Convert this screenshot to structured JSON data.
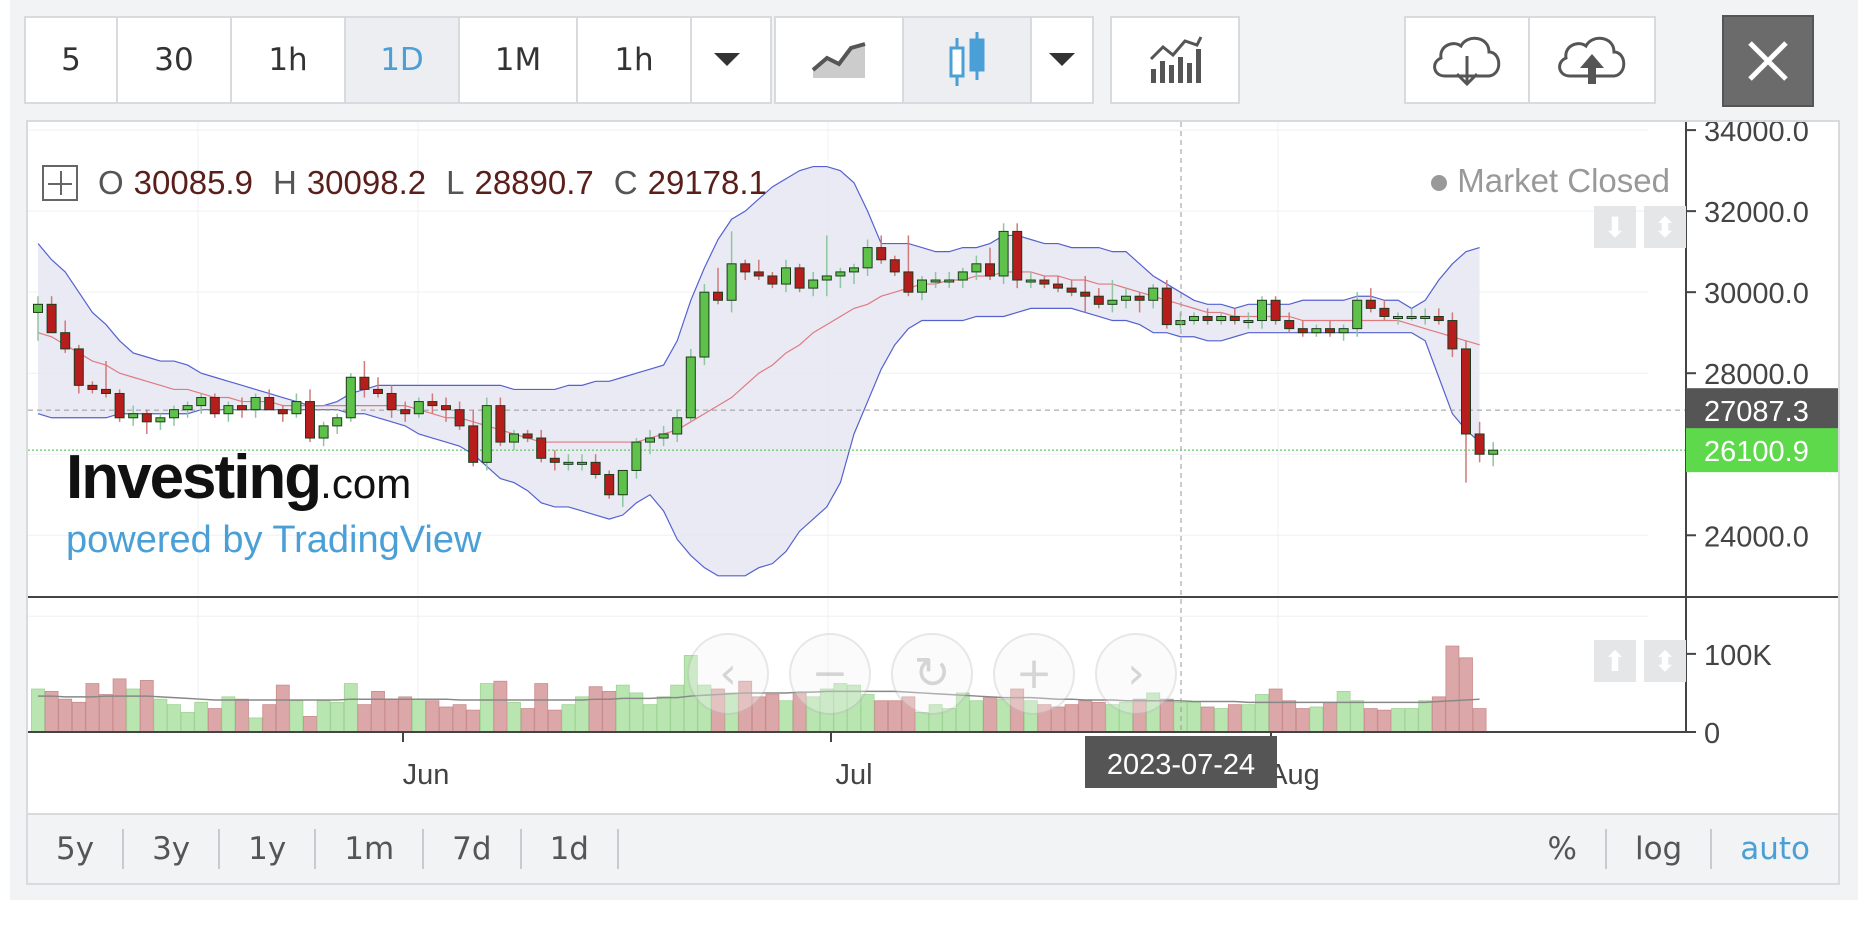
{
  "toolbar": {
    "intervals": [
      "5",
      "30",
      "1h",
      "1D",
      "1M",
      "1h"
    ],
    "active_interval": "1D",
    "chart_types": [
      "line-chart-icon",
      "candlestick-icon"
    ],
    "icons": {
      "dropdown": "caret-down-icon",
      "indicators": "indicators-icon",
      "download": "cloud-download-icon",
      "upload": "cloud-upload-icon",
      "close": "close-icon"
    }
  },
  "legend": {
    "o_label": "O",
    "o_value": "30085.9",
    "h_label": "H",
    "h_value": "30098.2",
    "l_label": "L",
    "l_value": "28890.7",
    "c_label": "C",
    "c_value": "29178.1",
    "market_status": "Market Closed"
  },
  "watermark": {
    "brand": "Investing",
    "suffix": ".com",
    "powered": "powered by TradingView"
  },
  "price_axis": {
    "ticks": [
      "34000.0",
      "32000.0",
      "30000.0",
      "28000.0",
      "24000.0"
    ],
    "hover_label": "27087.3",
    "last_label": "26100.9",
    "hover_color": "#555555",
    "last_color": "#5fd94c"
  },
  "volume_axis": {
    "ticks": [
      "100K",
      "0"
    ]
  },
  "time_axis": {
    "labels": [
      "Jun",
      "Jul",
      "Aug"
    ],
    "crosshair_label": "2023-07-24"
  },
  "range_bar": {
    "left": [
      "5y",
      "3y",
      "1y",
      "1m",
      "7d",
      "1d"
    ],
    "right": [
      "%",
      "log",
      "auto"
    ],
    "active": "auto"
  },
  "colors": {
    "up": "#5ec24a",
    "down": "#b81d1d",
    "band_fill": "#e6e6f2",
    "band_line": "#5561d0",
    "ma_line": "#e07a80",
    "vol_up": "#b9e5b1",
    "vol_down": "#dca7a8",
    "accent": "#4aa0d6"
  },
  "chart_data": {
    "type": "candlestick",
    "price_range": [
      22600,
      34200
    ],
    "volume_range": [
      0,
      160000
    ],
    "candles": [
      [
        29500,
        29900,
        28800,
        29700
      ],
      [
        29700,
        29900,
        29000,
        29000
      ],
      [
        29000,
        29300,
        28500,
        28600
      ],
      [
        28600,
        28700,
        27500,
        27700
      ],
      [
        27700,
        27800,
        27500,
        27600
      ],
      [
        27600,
        28300,
        27400,
        27500
      ],
      [
        27500,
        27600,
        26800,
        26900
      ],
      [
        26900,
        27200,
        26700,
        27000
      ],
      [
        27000,
        27100,
        26500,
        26800
      ],
      [
        26800,
        27000,
        26600,
        26900
      ],
      [
        26900,
        27200,
        26700,
        27100
      ],
      [
        27100,
        27300,
        26900,
        27200
      ],
      [
        27200,
        27500,
        27000,
        27400
      ],
      [
        27400,
        27500,
        26900,
        27000
      ],
      [
        27000,
        27300,
        26800,
        27200
      ],
      [
        27200,
        27400,
        26900,
        27100
      ],
      [
        27100,
        27500,
        26900,
        27400
      ],
      [
        27400,
        27600,
        27100,
        27100
      ],
      [
        27100,
        27200,
        26800,
        27000
      ],
      [
        27000,
        27500,
        26900,
        27300
      ],
      [
        27300,
        27600,
        26300,
        26400
      ],
      [
        26400,
        26800,
        26200,
        26700
      ],
      [
        26700,
        27000,
        26500,
        26900
      ],
      [
        26900,
        28000,
        26800,
        27900
      ],
      [
        27900,
        28300,
        27400,
        27600
      ],
      [
        27600,
        27900,
        27400,
        27500
      ],
      [
        27500,
        27700,
        26900,
        27100
      ],
      [
        27100,
        27300,
        26800,
        27000
      ],
      [
        27000,
        27400,
        26900,
        27300
      ],
      [
        27300,
        27500,
        27000,
        27200
      ],
      [
        27200,
        27400,
        26800,
        27100
      ],
      [
        27100,
        27300,
        26600,
        26700
      ],
      [
        26700,
        27100,
        25700,
        25800
      ],
      [
        25800,
        27400,
        25600,
        27200
      ],
      [
        27200,
        27400,
        26200,
        26300
      ],
      [
        26300,
        26600,
        26100,
        26500
      ],
      [
        26500,
        26600,
        26300,
        26400
      ],
      [
        26400,
        26600,
        25800,
        25900
      ],
      [
        25900,
        26100,
        25600,
        25800
      ],
      [
        25800,
        26000,
        25600,
        25800
      ],
      [
        25800,
        26000,
        25600,
        25800
      ],
      [
        25800,
        26000,
        25400,
        25500
      ],
      [
        25500,
        25600,
        24900,
        25000
      ],
      [
        25000,
        25600,
        24700,
        25600
      ],
      [
        25600,
        26400,
        25400,
        26300
      ],
      [
        26300,
        26600,
        26000,
        26400
      ],
      [
        26400,
        26700,
        26200,
        26500
      ],
      [
        26500,
        27100,
        26300,
        26900
      ],
      [
        26900,
        28600,
        26800,
        28400
      ],
      [
        28400,
        30200,
        28200,
        30000
      ],
      [
        30000,
        30600,
        29700,
        29800
      ],
      [
        29800,
        31500,
        29500,
        30700
      ],
      [
        30700,
        30800,
        30300,
        30500
      ],
      [
        30500,
        30800,
        30300,
        30400
      ],
      [
        30400,
        30500,
        30100,
        30200
      ],
      [
        30200,
        30800,
        30000,
        30600
      ],
      [
        30600,
        30700,
        30000,
        30100
      ],
      [
        30100,
        30500,
        29900,
        30300
      ],
      [
        30300,
        31400,
        29900,
        30400
      ],
      [
        30400,
        30600,
        30100,
        30500
      ],
      [
        30500,
        30700,
        30200,
        30600
      ],
      [
        30600,
        31300,
        30400,
        31100
      ],
      [
        31100,
        31400,
        30700,
        30800
      ],
      [
        30800,
        30900,
        30400,
        30500
      ],
      [
        30500,
        31400,
        29900,
        30000
      ],
      [
        30000,
        30400,
        29800,
        30300
      ],
      [
        30300,
        30500,
        30100,
        30300
      ],
      [
        30300,
        30500,
        30100,
        30300
      ],
      [
        30300,
        30600,
        30100,
        30500
      ],
      [
        30500,
        30900,
        30300,
        30700
      ],
      [
        30700,
        31100,
        30300,
        30400
      ],
      [
        30400,
        31700,
        30200,
        31500
      ],
      [
        31500,
        31700,
        30100,
        30300
      ],
      [
        30300,
        30500,
        30100,
        30300
      ],
      [
        30300,
        30400,
        30100,
        30200
      ],
      [
        30200,
        30400,
        30000,
        30100
      ],
      [
        30100,
        30300,
        29900,
        30000
      ],
      [
        30000,
        30400,
        29500,
        29900
      ],
      [
        29900,
        30100,
        29600,
        29700
      ],
      [
        29700,
        30300,
        29500,
        29800
      ],
      [
        29800,
        30100,
        29600,
        29900
      ],
      [
        29900,
        30000,
        29500,
        29800
      ],
      [
        29800,
        30200,
        29600,
        30100
      ],
      [
        30100,
        30300,
        29100,
        29200
      ],
      [
        29200,
        29500,
        29100,
        29300
      ],
      [
        29300,
        29500,
        29200,
        29400
      ],
      [
        29400,
        29600,
        29200,
        29300
      ],
      [
        29300,
        29500,
        29200,
        29400
      ],
      [
        29400,
        29600,
        29200,
        29300
      ],
      [
        29300,
        29500,
        29100,
        29300
      ],
      [
        29300,
        29900,
        29100,
        29800
      ],
      [
        29800,
        29900,
        29200,
        29300
      ],
      [
        29300,
        29500,
        29000,
        29100
      ],
      [
        29100,
        29300,
        28900,
        29000
      ],
      [
        29000,
        29200,
        28900,
        29100
      ],
      [
        29100,
        29300,
        28900,
        29000
      ],
      [
        29000,
        29200,
        28800,
        29100
      ],
      [
        29100,
        30000,
        28900,
        29800
      ],
      [
        29800,
        30100,
        29500,
        29600
      ],
      [
        29600,
        29800,
        29300,
        29400
      ],
      [
        29400,
        29500,
        29200,
        29400
      ],
      [
        29400,
        29600,
        29300,
        29400
      ],
      [
        29400,
        29600,
        29200,
        29400
      ],
      [
        29400,
        29600,
        29200,
        29300
      ],
      [
        29300,
        29500,
        28400,
        28600
      ],
      [
        28600,
        28800,
        25300,
        26500
      ],
      [
        26500,
        26800,
        25800,
        26000
      ],
      [
        26000,
        26300,
        25700,
        26100
      ]
    ],
    "volumes": [
      55,
      52,
      42,
      38,
      62,
      48,
      68,
      55,
      66,
      42,
      35,
      25,
      38,
      30,
      45,
      42,
      18,
      35,
      60,
      40,
      20,
      40,
      38,
      62,
      35,
      52,
      42,
      45,
      42,
      40,
      32,
      35,
      28,
      62,
      65,
      38,
      30,
      62,
      28,
      35,
      45,
      58,
      52,
      60,
      50,
      35,
      45,
      60,
      98,
      60,
      55,
      50,
      65,
      45,
      48,
      40,
      50,
      45,
      55,
      62,
      60,
      48,
      40,
      40,
      45,
      25,
      35,
      30,
      50,
      40,
      45,
      42,
      55,
      40,
      35,
      32,
      35,
      40,
      38,
      35,
      38,
      42,
      50,
      42,
      38,
      38,
      32,
      30,
      35,
      35,
      48,
      55,
      40,
      30,
      32,
      38,
      52,
      40,
      30,
      28,
      30,
      30,
      40,
      45,
      110,
      95,
      30
    ],
    "bands": {
      "upper": [
        31200,
        30800,
        30500,
        30000,
        29500,
        29200,
        28800,
        28500,
        28400,
        28300,
        28300,
        28200,
        28000,
        27900,
        27800,
        27700,
        27600,
        27500,
        27400,
        27300,
        27200,
        27200,
        27300,
        27500,
        27600,
        27700,
        27700,
        27700,
        27700,
        27700,
        27700,
        27700,
        27700,
        27700,
        27700,
        27600,
        27600,
        27600,
        27600,
        27700,
        27700,
        27800,
        27800,
        27900,
        28000,
        28100,
        28200,
        28800,
        29800,
        30600,
        31300,
        31800,
        32000,
        32300,
        32600,
        32800,
        33000,
        33100,
        33100,
        33000,
        32700,
        32000,
        31200,
        31200,
        31200,
        31100,
        31000,
        31000,
        31100,
        31100,
        31200,
        31400,
        31400,
        31300,
        31200,
        31200,
        31100,
        31100,
        31100,
        31000,
        31000,
        30700,
        30400,
        30200,
        30000,
        29800,
        29700,
        29700,
        29600,
        29700,
        29700,
        29700,
        29700,
        29800,
        29800,
        29800,
        29800,
        29900,
        29900,
        29800,
        29800,
        29600,
        29800,
        30300,
        30700,
        31000,
        31100
      ],
      "lower": [
        27000,
        26900,
        26900,
        26900,
        26900,
        26900,
        27000,
        27000,
        27000,
        27000,
        27000,
        27000,
        27100,
        27100,
        27100,
        27100,
        27100,
        27100,
        27100,
        27100,
        27100,
        27100,
        27100,
        27000,
        27000,
        26900,
        26800,
        26700,
        26500,
        26400,
        26300,
        26200,
        26000,
        25700,
        25400,
        25300,
        25100,
        24800,
        24700,
        24700,
        24600,
        24500,
        24400,
        24500,
        24800,
        25000,
        24600,
        23900,
        23500,
        23200,
        23000,
        23000,
        23000,
        23200,
        23300,
        23600,
        24100,
        24400,
        24700,
        25300,
        26500,
        27300,
        28100,
        28700,
        29100,
        29300,
        29300,
        29300,
        29300,
        29400,
        29400,
        29400,
        29500,
        29600,
        29600,
        29600,
        29600,
        29500,
        29400,
        29300,
        29300,
        29200,
        29000,
        29000,
        28900,
        28900,
        28800,
        28800,
        28900,
        29000,
        29000,
        29000,
        29000,
        29000,
        29000,
        29000,
        29000,
        29000,
        29000,
        29000,
        29000,
        29000,
        28800,
        27900,
        27000,
        26600,
        26300
      ],
      "middle": [
        29000,
        28900,
        28700,
        28500,
        28300,
        28200,
        28000,
        27900,
        27800,
        27700,
        27600,
        27600,
        27500,
        27400,
        27400,
        27300,
        27300,
        27300,
        27200,
        27200,
        27200,
        27200,
        27200,
        27200,
        27200,
        27200,
        27200,
        27200,
        27100,
        27000,
        26900,
        26900,
        26800,
        26700,
        26600,
        26500,
        26400,
        26300,
        26300,
        26300,
        26300,
        26300,
        26300,
        26300,
        26300,
        26400,
        26500,
        26600,
        26800,
        27000,
        27200,
        27400,
        27700,
        28000,
        28200,
        28500,
        28700,
        29000,
        29200,
        29400,
        29600,
        29700,
        29900,
        30000,
        30100,
        30200,
        30200,
        30300,
        30300,
        30400,
        30400,
        30500,
        30500,
        30500,
        30400,
        30400,
        30300,
        30300,
        30200,
        30200,
        30100,
        30000,
        29900,
        29800,
        29700,
        29600,
        29500,
        29500,
        29400,
        29400,
        29400,
        29400,
        29400,
        29300,
        29300,
        29300,
        29300,
        29300,
        29300,
        29300,
        29300,
        29200,
        29100,
        29000,
        28900,
        28800,
        28700
      ]
    },
    "volume_ma": [
      46,
      46,
      45,
      45,
      45,
      46,
      46,
      46,
      46,
      45,
      44,
      43,
      42,
      41,
      41,
      41,
      41,
      41,
      41,
      41,
      41,
      41,
      41,
      42,
      42,
      42,
      42,
      42,
      42,
      42,
      42,
      41,
      41,
      41,
      41,
      41,
      41,
      41,
      41,
      41,
      41,
      42,
      42,
      43,
      43,
      43,
      44,
      44,
      46,
      47,
      48,
      49,
      50,
      50,
      50,
      50,
      51,
      51,
      52,
      52,
      52,
      52,
      52,
      52,
      51,
      50,
      49,
      48,
      47,
      46,
      45,
      44,
      44,
      44,
      43,
      42,
      42,
      41,
      41,
      41,
      40,
      40,
      40,
      40,
      40,
      39,
      39,
      39,
      39,
      38,
      38,
      38,
      38,
      38,
      38,
      38,
      38,
      38,
      38,
      38,
      38,
      38,
      38,
      39,
      40,
      41,
      42
    ]
  }
}
